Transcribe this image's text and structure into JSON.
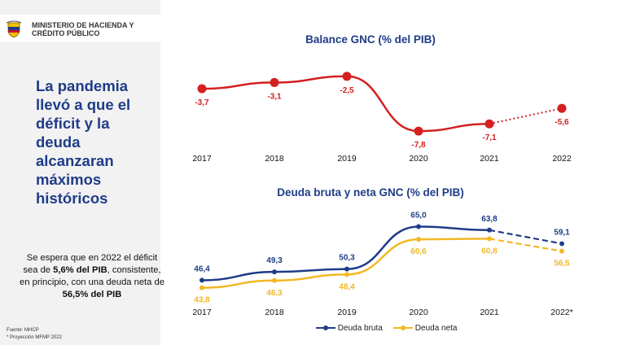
{
  "header": {
    "org_line1": "MINISTERIO DE HACIENDA Y",
    "org_line2": "CRÉDITO PÚBLICO"
  },
  "headline": "La pandemia llevó a que el déficit y la deuda alcanzaran máximos históricos",
  "summary": {
    "p1": "Se espera que en 2022 el déficit sea de ",
    "b1": "5,6% del PIB",
    "p2": ", consistente, en principio, con una deuda neta de ",
    "b2": "56,5% del PIB"
  },
  "footnotes": [
    "Fuente: MHCP",
    "* Proyección MFMP 2022"
  ],
  "colors": {
    "balance": "#d42020",
    "bruta": "#1f3c88",
    "neta": "#f2b824",
    "title": "#1f3c88"
  },
  "chart_data": [
    {
      "type": "line",
      "title": "Balance GNC (% del PIB)",
      "categories": [
        "2017",
        "2018",
        "2019",
        "2020",
        "2021",
        "2022"
      ],
      "series": [
        {
          "values": [
            -3.7,
            -3.1,
            -2.5,
            -7.8,
            -7.1,
            -5.6
          ]
        }
      ],
      "labels": [
        "-3,7",
        "-3,1",
        "-2,5",
        "-7,8",
        "-7,1",
        "-5,6"
      ],
      "projected_from_index": 4
    },
    {
      "type": "line",
      "title": "Deuda bruta y neta GNC (% del PIB)",
      "categories": [
        "2017",
        "2018",
        "2019",
        "2020",
        "2021",
        "2022*"
      ],
      "series": [
        {
          "name": "Deuda bruta",
          "values": [
            46.4,
            49.3,
            50.3,
            65.0,
            63.8,
            59.1
          ],
          "labels": [
            "46,4",
            "49,3",
            "50,3",
            "65,0",
            "63,8",
            "59,1"
          ]
        },
        {
          "name": "Deuda neta",
          "values": [
            43.8,
            46.3,
            48.4,
            60.6,
            60.8,
            56.5
          ],
          "labels": [
            "43,8",
            "46,3",
            "48,4",
            "60,6",
            "60,8",
            "56,5"
          ]
        }
      ],
      "projected_from_index": 4,
      "legend_position": "bottom"
    }
  ]
}
